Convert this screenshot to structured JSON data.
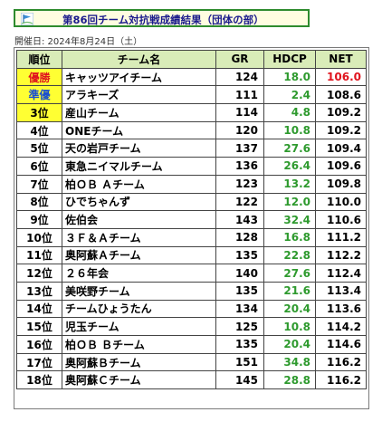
{
  "title": "第86回チーム対抗戦成績結果（団体の部）",
  "date": "開催日: 2024年8月24日（土）",
  "colors": {
    "accent_green": "#2e8b2e",
    "header_bg": "#d9ecb8",
    "highlight": "#ffff33",
    "winner_red": "#e0141e",
    "hdcp_green": "#2e9a2e"
  },
  "table": {
    "headers": [
      "順位",
      "チーム名",
      "GR",
      "HDCP",
      "NET"
    ],
    "rows": [
      {
        "rank": "優勝",
        "team": "キャッツアイチーム",
        "gr": "124",
        "hdcp": "18.0",
        "net": "106.0"
      },
      {
        "rank": "準優",
        "team": "アラキーズ",
        "gr": "111",
        "hdcp": "2.4",
        "net": "108.6"
      },
      {
        "rank": "3位",
        "team": "産山チーム",
        "gr": "114",
        "hdcp": "4.8",
        "net": "109.2"
      },
      {
        "rank": "4位",
        "team": "ONEチーム",
        "gr": "120",
        "hdcp": "10.8",
        "net": "109.2"
      },
      {
        "rank": "5位",
        "team": "天の岩戸チーム",
        "gr": "137",
        "hdcp": "27.6",
        "net": "109.4"
      },
      {
        "rank": "6位",
        "team": "東急ニイマルチーム",
        "gr": "136",
        "hdcp": "26.4",
        "net": "109.6"
      },
      {
        "rank": "7位",
        "team": "柏ＯＢ Ａチーム",
        "gr": "123",
        "hdcp": "13.2",
        "net": "109.8"
      },
      {
        "rank": "8位",
        "team": "ひでちゃんず",
        "gr": "122",
        "hdcp": "12.0",
        "net": "110.0"
      },
      {
        "rank": "9位",
        "team": "佐伯会",
        "gr": "143",
        "hdcp": "32.4",
        "net": "110.6"
      },
      {
        "rank": "10位",
        "team": "３Ｆ＆Ａチーム",
        "gr": "128",
        "hdcp": "16.8",
        "net": "111.2"
      },
      {
        "rank": "11位",
        "team": "奥阿蘇Ａチーム",
        "gr": "135",
        "hdcp": "22.8",
        "net": "112.2"
      },
      {
        "rank": "12位",
        "team": "２６年会",
        "gr": "140",
        "hdcp": "27.6",
        "net": "112.4"
      },
      {
        "rank": "13位",
        "team": "美咲野チーム",
        "gr": "135",
        "hdcp": "21.6",
        "net": "113.4"
      },
      {
        "rank": "14位",
        "team": "チームひょうたん",
        "gr": "134",
        "hdcp": "20.4",
        "net": "113.6"
      },
      {
        "rank": "15位",
        "team": "児玉チーム",
        "gr": "125",
        "hdcp": "10.8",
        "net": "114.2"
      },
      {
        "rank": "16位",
        "team": "柏ＯＢ Ｂチーム",
        "gr": "135",
        "hdcp": "20.4",
        "net": "114.6"
      },
      {
        "rank": "17位",
        "team": "奥阿蘇Ｂチーム",
        "gr": "151",
        "hdcp": "34.8",
        "net": "116.2"
      },
      {
        "rank": "18位",
        "team": "奥阿蘇Ｃチーム",
        "gr": "145",
        "hdcp": "28.8",
        "net": "116.2"
      }
    ]
  }
}
